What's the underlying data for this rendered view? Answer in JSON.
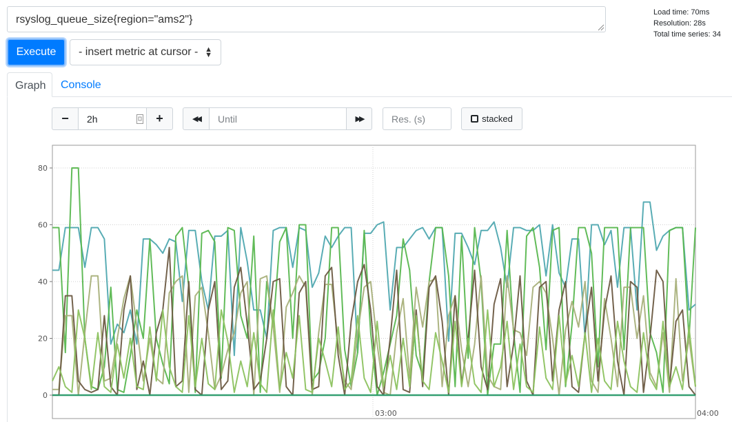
{
  "query": {
    "expression": "rsyslog_queue_size{region=\"ams2\"}"
  },
  "stats": {
    "load_time": "Load time: 70ms",
    "resolution": "Resolution: 28s",
    "total_series": "Total time series: 34"
  },
  "toolbar": {
    "execute_label": "Execute",
    "insert_metric_label": "- insert metric at cursor -"
  },
  "tabs": {
    "graph": "Graph",
    "console": "Console"
  },
  "graph_controls": {
    "minus_label": "−",
    "range_value": "2h",
    "plus_label": "+",
    "back_label": "◀◀",
    "until_placeholder": "Until",
    "forward_label": "▶▶",
    "resolution_placeholder": "Res. (s)",
    "stacked_label": "stacked"
  },
  "colors": {
    "accent": "#007bff",
    "series_palette": [
      "#4fa8b0",
      "#59b74f",
      "#a8b07a",
      "#6b5a42",
      "#2a9a6a",
      "#8cc25f"
    ]
  },
  "chart_data": {
    "type": "line",
    "x_ticks": [
      "03:00",
      "04:00"
    ],
    "y_ticks": [
      0,
      20,
      40,
      60,
      80
    ],
    "ylim": [
      -8,
      88
    ],
    "xlim": [
      0,
      1
    ],
    "grid": true,
    "series": [
      {
        "values": [
          44,
          44,
          59,
          59,
          59,
          45,
          59,
          59,
          55,
          18,
          25,
          22,
          30,
          18,
          55,
          55,
          53,
          50,
          55,
          54,
          33,
          58,
          58,
          40,
          30,
          56,
          56,
          58,
          14,
          59,
          47,
          30,
          30,
          20,
          58,
          59,
          59,
          45,
          59,
          58,
          38,
          43,
          56,
          52,
          56,
          59,
          59,
          15,
          57,
          57,
          60,
          61,
          30,
          52,
          52,
          55,
          58,
          59,
          55,
          59,
          59,
          19,
          57,
          57,
          52,
          46,
          58,
          58,
          61,
          52,
          38,
          59,
          59,
          58,
          58,
          60,
          42,
          60,
          43,
          38,
          55,
          55,
          20,
          60,
          60,
          53,
          58,
          38,
          59,
          59,
          30,
          68,
          68,
          51,
          56,
          58,
          59,
          59,
          30,
          32
        ]
      },
      {
        "values": [
          59,
          59,
          15,
          80,
          80,
          20,
          3,
          2,
          10,
          38,
          2,
          1,
          14,
          30,
          20,
          55,
          20,
          11,
          4,
          56,
          59,
          38,
          1,
          57,
          58,
          54,
          6,
          59,
          58,
          28,
          20,
          56,
          1,
          40,
          24,
          54,
          59,
          20,
          60,
          60,
          5,
          8,
          20,
          59,
          59,
          16,
          3,
          15,
          58,
          22,
          0,
          8,
          18,
          28,
          55,
          44,
          14,
          7,
          40,
          59,
          59,
          42,
          3,
          56,
          13,
          59,
          40,
          0,
          18,
          18,
          58,
          22,
          1,
          56,
          59,
          45,
          16,
          58,
          59,
          3,
          25,
          59,
          59,
          50,
          10,
          59,
          59,
          59,
          16,
          59,
          59,
          59,
          22,
          15,
          1,
          58,
          59,
          59,
          20,
          59
        ]
      },
      {
        "values": [
          2,
          2,
          28,
          28,
          0,
          22,
          42,
          42,
          5,
          6,
          20,
          34,
          42,
          24,
          5,
          20,
          6,
          4,
          36,
          40,
          42,
          1,
          35,
          38,
          22,
          2,
          7,
          16,
          22,
          36,
          40,
          0,
          41,
          42,
          24,
          1,
          31,
          36,
          42,
          38,
          0,
          22,
          39,
          39,
          18,
          5,
          2,
          22,
          38,
          40,
          18,
          1,
          0,
          22,
          34,
          6,
          38,
          24,
          40,
          41,
          3,
          28,
          35,
          16,
          3,
          18,
          42,
          7,
          3,
          2,
          42,
          23,
          22,
          14,
          38,
          40,
          36,
          20,
          0,
          23,
          33,
          24,
          40,
          5,
          1,
          34,
          20,
          3,
          38,
          38,
          20,
          35,
          8,
          3,
          22,
          1,
          41,
          5,
          20,
          3
        ]
      },
      {
        "values": [
          0,
          0,
          35,
          35,
          5,
          2,
          1,
          2,
          28,
          3,
          0,
          30,
          42,
          2,
          12,
          0,
          22,
          30,
          52,
          3,
          5,
          40,
          2,
          0,
          30,
          40,
          2,
          5,
          38,
          45,
          25,
          2,
          5,
          20,
          40,
          41,
          3,
          0,
          36,
          40,
          2,
          3,
          42,
          45,
          14,
          0,
          26,
          40,
          46,
          30,
          3,
          0,
          20,
          44,
          2,
          1,
          30,
          3,
          38,
          42,
          26,
          0,
          35,
          4,
          20,
          44,
          10,
          2,
          32,
          41,
          3,
          18,
          42,
          5,
          0,
          38,
          40,
          5,
          30,
          40,
          3,
          1,
          22,
          38,
          5,
          30,
          42,
          12,
          0,
          40,
          38,
          1,
          20,
          44,
          40,
          3,
          26,
          30,
          3,
          0
        ]
      },
      {
        "values": [
          0,
          0,
          0,
          0,
          0,
          0,
          0,
          0,
          0,
          0,
          0,
          0,
          0,
          0,
          0,
          0,
          0,
          0,
          0,
          0,
          0,
          0,
          0,
          0,
          0,
          0,
          0,
          0,
          0,
          0,
          0,
          0,
          0,
          0,
          0,
          0,
          0,
          0,
          0,
          0,
          0,
          0,
          0,
          0,
          0,
          0,
          0,
          0,
          0,
          0,
          0,
          0,
          0,
          0,
          0,
          0,
          0,
          0,
          0,
          0,
          0,
          0,
          0,
          0,
          0,
          0,
          0,
          0,
          0,
          0,
          0,
          0,
          0,
          0,
          0,
          0,
          0,
          0,
          0,
          0,
          0,
          0,
          0,
          0,
          0,
          0,
          0,
          0,
          0,
          0,
          0,
          0,
          0,
          0,
          0,
          0,
          0,
          0,
          0,
          0
        ]
      },
      {
        "values": [
          5,
          10,
          3,
          1,
          30,
          20,
          2,
          22,
          3,
          1,
          18,
          6,
          20,
          3,
          2,
          24,
          5,
          30,
          10,
          3,
          1,
          28,
          3,
          20,
          4,
          2,
          30,
          19,
          1,
          12,
          3,
          22,
          4,
          1,
          30,
          2,
          15,
          6,
          28,
          2,
          1,
          20,
          12,
          3,
          24,
          2,
          5,
          28,
          6,
          1,
          26,
          3,
          14,
          2,
          20,
          3,
          28,
          5,
          2,
          22,
          12,
          1,
          26,
          3,
          20,
          4,
          1,
          30,
          3,
          10,
          26,
          2,
          18,
          3,
          1,
          24,
          6,
          2,
          28,
          4,
          14,
          3,
          22,
          1,
          20,
          5,
          2,
          26,
          12,
          3,
          1,
          22,
          6,
          2,
          26,
          3,
          10,
          2,
          24,
          3
        ]
      }
    ]
  }
}
